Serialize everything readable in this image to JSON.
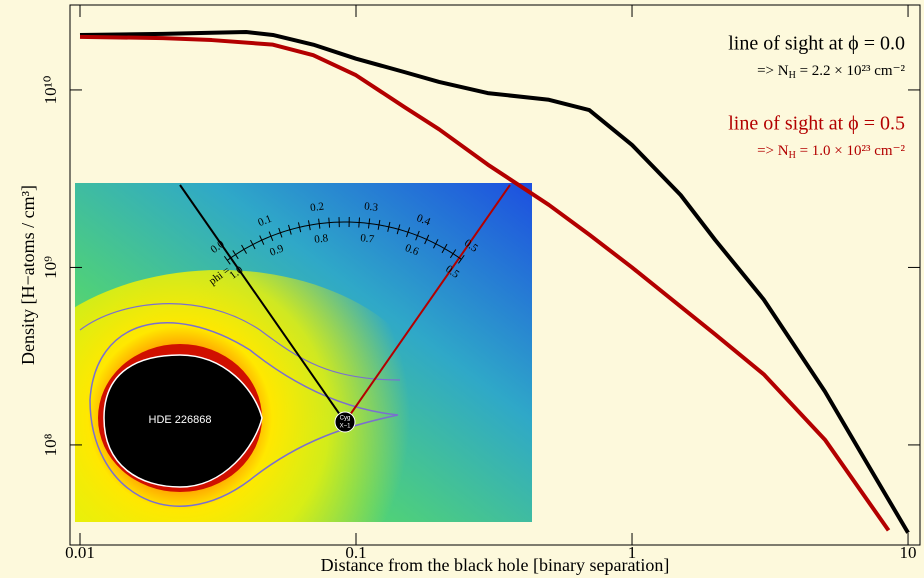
{
  "chart_data": {
    "type": "line",
    "xlabel": "Distance from the black hole  [binary separation]",
    "ylabel": "Density  [H−atoms / cm³]",
    "log_x": true,
    "log_y": true,
    "xlim": [
      0.0092,
      11.05
    ],
    "ylim": [
      27300000.0,
      30100000000.0
    ],
    "xticks": [
      0.01,
      0.1,
      1,
      10
    ],
    "yticks": [
      {
        "value": 100000000.0,
        "label": "10⁸"
      },
      {
        "value": 1000000000.0,
        "label": "10⁹"
      },
      {
        "value": 10000000000.0,
        "label": "10¹⁰"
      }
    ],
    "series": [
      {
        "name": "line of sight at ϕ = 0.0",
        "color": "#000000",
        "x": [
          0.01,
          0.02,
          0.03,
          0.04,
          0.05,
          0.07,
          0.1,
          0.15,
          0.2,
          0.3,
          0.5,
          0.7,
          1,
          1.5,
          2,
          3,
          5,
          7,
          10
        ],
        "values": [
          20400000000.0,
          20700000000.0,
          21000000000.0,
          21200000000.0,
          20400000000.0,
          18000000000.0,
          15000000000.0,
          12600000000.0,
          11100000000.0,
          9600000000.0,
          8800000000.0,
          7700000000.0,
          4900000000.0,
          2560000000.0,
          1430000000.0,
          660000000.0,
          200000000.0,
          82000000.0,
          32000000.0
        ],
        "note": {
          "prefix": "=>  N",
          "sub": "H",
          "rest": " = 2.2 × 10²³ cm⁻²"
        }
      },
      {
        "name": "line of sight at ϕ = 0.5",
        "color": "#b30000",
        "x": [
          0.01,
          0.02,
          0.03,
          0.05,
          0.07,
          0.1,
          0.15,
          0.2,
          0.3,
          0.5,
          0.7,
          1,
          2,
          3,
          5,
          8.5
        ],
        "values": [
          19900000000.0,
          19600000000.0,
          19100000000.0,
          18000000000.0,
          15700000000.0,
          12100000000.0,
          8000000000.0,
          6000000000.0,
          3800000000.0,
          2250000000.0,
          1530000000.0,
          1000000000.0,
          420000000.0,
          250000000.0,
          107000000.0,
          33000000.0
        ],
        "note": {
          "prefix": "=>  N",
          "sub": "H",
          "rest": " = 1.0 × 10²³ cm⁻²"
        }
      }
    ],
    "inset": {
      "star": "HDE 226868",
      "bh_top": "Cyg",
      "bh_bottom": "X−1",
      "phi_label": "phi =",
      "outer": [
        "0.0",
        "0.1",
        "0.2",
        "0.3",
        "0.4",
        "0.5"
      ],
      "inner": [
        "1.0",
        "0.9",
        "0.8",
        "0.7",
        "0.6",
        "0.5"
      ]
    }
  }
}
